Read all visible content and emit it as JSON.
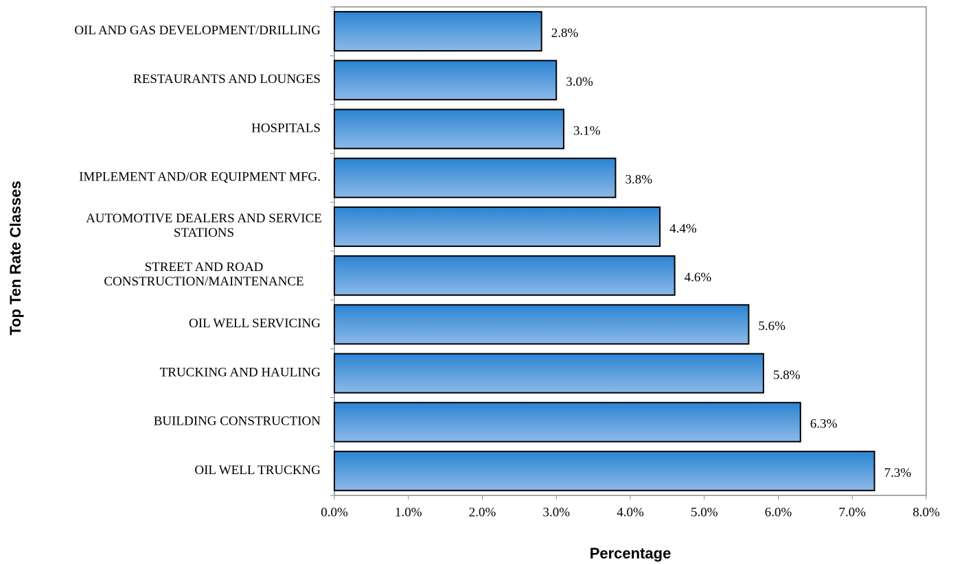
{
  "chart_data": {
    "type": "bar",
    "orientation": "horizontal",
    "x_label": "Percentage",
    "y_label": "Top Ten Rate Classes",
    "categories": [
      "OIL AND GAS DEVELOPMENT/DRILLING",
      "RESTAURANTS AND LOUNGES",
      "HOSPITALS",
      "IMPLEMENT AND/OR EQUIPMENT MFG.",
      "AUTOMOTIVE DEALERS AND SERVICE\nSTATIONS",
      "STREET AND ROAD\nCONSTRUCTION/MAINTENANCE",
      "OIL WELL SERVICING",
      "TRUCKING AND HAULING",
      "BUILDING CONSTRUCTION",
      "OIL WELL TRUCKNG"
    ],
    "values": [
      2.8,
      3.0,
      3.1,
      3.8,
      4.4,
      4.6,
      5.6,
      5.8,
      6.3,
      7.3
    ],
    "value_labels": [
      "2.8%",
      "3.0%",
      "3.1%",
      "3.8%",
      "4.4%",
      "4.6%",
      "5.6%",
      "5.8%",
      "6.3%",
      "7.3%"
    ],
    "color": "#4a95dc",
    "xlim": [
      0,
      8
    ],
    "xticks": [
      {
        "value": 0,
        "label": "0.0%"
      },
      {
        "value": 1,
        "label": "1.0%"
      },
      {
        "value": 2,
        "label": "2.0%"
      },
      {
        "value": 3,
        "label": "3.0%"
      },
      {
        "value": 4,
        "label": "4.0%"
      },
      {
        "value": 5,
        "label": "5.0%"
      },
      {
        "value": 6,
        "label": "6.0%"
      },
      {
        "value": 7,
        "label": "7.0%"
      },
      {
        "value": 8,
        "label": "8.0%"
      }
    ],
    "grid": false
  }
}
